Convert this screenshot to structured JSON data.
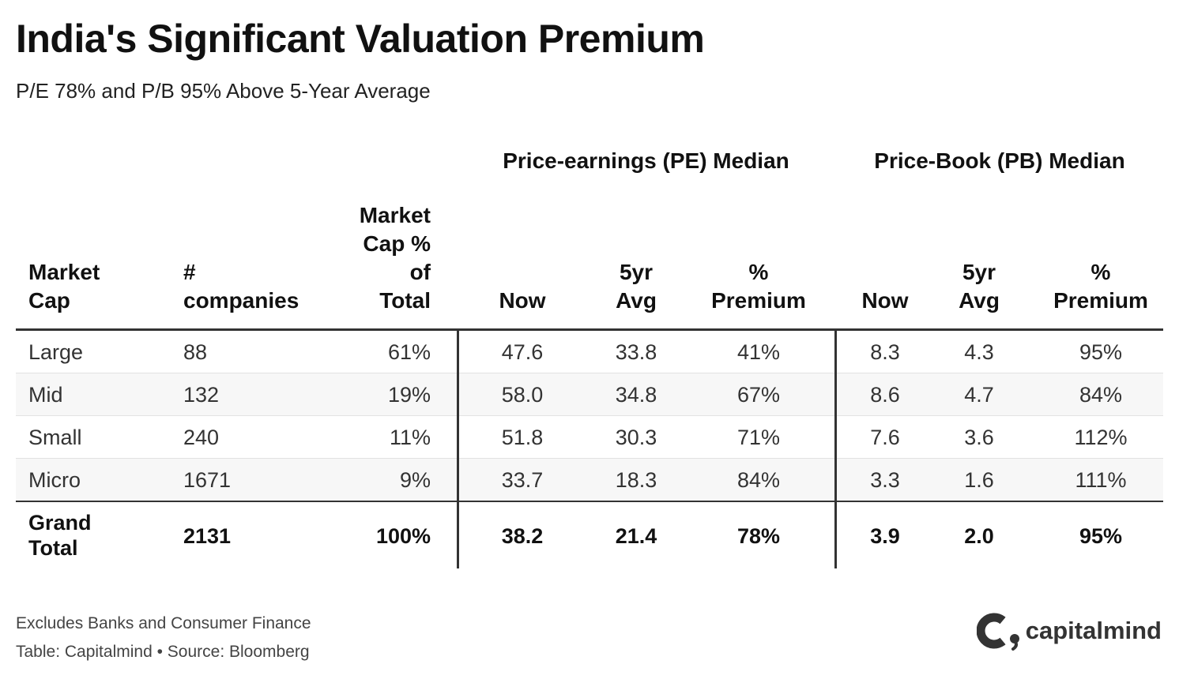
{
  "chart_data": {
    "type": "table",
    "title": "India's Significant Valuation Premium",
    "subtitle": "P/E 78% and P/B 95% Above 5-Year Average",
    "group_headers": {
      "pe": "Price-earnings (PE) Median",
      "pb": "Price-Book (PB) Median"
    },
    "columns": {
      "market_cap": [
        "Market",
        "Cap"
      ],
      "companies": [
        "#",
        "companies"
      ],
      "share": [
        "Market",
        "Cap %",
        "of",
        "Total"
      ],
      "pe_now": [
        "Now"
      ],
      "pe_avg": [
        "5yr",
        "Avg"
      ],
      "pe_prem": [
        "%",
        "Premium"
      ],
      "pb_now": [
        "Now"
      ],
      "pb_avg": [
        "5yr",
        "Avg"
      ],
      "pb_prem": [
        "%",
        "Premium"
      ]
    },
    "rows": [
      {
        "market_cap": "Large",
        "companies": "88",
        "share": "61%",
        "pe_now": "47.6",
        "pe_avg": "33.8",
        "pe_prem": "41%",
        "pb_now": "8.3",
        "pb_avg": "4.3",
        "pb_prem": "95%"
      },
      {
        "market_cap": "Mid",
        "companies": "132",
        "share": "19%",
        "pe_now": "58.0",
        "pe_avg": "34.8",
        "pe_prem": "67%",
        "pb_now": "8.6",
        "pb_avg": "4.7",
        "pb_prem": "84%"
      },
      {
        "market_cap": "Small",
        "companies": "240",
        "share": "11%",
        "pe_now": "51.8",
        "pe_avg": "30.3",
        "pe_prem": "71%",
        "pb_now": "7.6",
        "pb_avg": "3.6",
        "pb_prem": "112%"
      },
      {
        "market_cap": "Micro",
        "companies": "1671",
        "share": "9%",
        "pe_now": "33.7",
        "pe_avg": "18.3",
        "pe_prem": "84%",
        "pb_now": "3.3",
        "pb_avg": "1.6",
        "pb_prem": "111%"
      }
    ],
    "total": {
      "market_cap": [
        "Grand",
        "Total"
      ],
      "companies": "2131",
      "share": "100%",
      "pe_now": "38.2",
      "pe_avg": "21.4",
      "pe_prem": "78%",
      "pb_now": "3.9",
      "pb_avg": "2.0",
      "pb_prem": "95%"
    }
  },
  "footer": {
    "note": "Excludes Banks and Consumer Finance",
    "source": "Table: Capitalmind • Source: Bloomberg"
  },
  "logo": {
    "text": "capitalmind",
    "icon": "capitalmind-logo-icon"
  },
  "colors": {
    "text": "#111111",
    "rule": "#333333",
    "alt_row": "#f7f7f7"
  }
}
